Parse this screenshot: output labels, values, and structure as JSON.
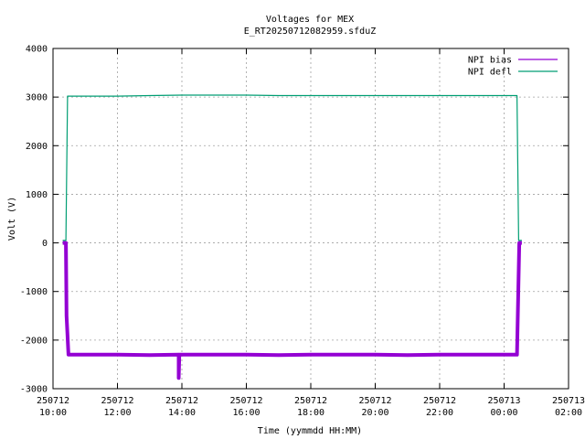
{
  "chart_data": {
    "type": "line",
    "title": "Voltages for MEX",
    "subtitle": "E_RT20250712082959.sfduZ",
    "xlabel": "Time (yymmdd HH:MM)",
    "ylabel": "Volt (V)",
    "xlim": [
      10,
      26
    ],
    "ylim": [
      -3000,
      4000
    ],
    "grid": true,
    "legend_position": "top-right",
    "x_ticks": [
      {
        "x": 10,
        "date": "250712",
        "time": "10:00"
      },
      {
        "x": 12,
        "date": "250712",
        "time": "12:00"
      },
      {
        "x": 14,
        "date": "250712",
        "time": "14:00"
      },
      {
        "x": 16,
        "date": "250712",
        "time": "16:00"
      },
      {
        "x": 18,
        "date": "250712",
        "time": "18:00"
      },
      {
        "x": 20,
        "date": "250712",
        "time": "20:00"
      },
      {
        "x": 22,
        "date": "250712",
        "time": "22:00"
      },
      {
        "x": 24,
        "date": "250713",
        "time": "00:00"
      },
      {
        "x": 26,
        "date": "250713",
        "time": "02:00"
      }
    ],
    "y_ticks": [
      {
        "y": 4000,
        "label": "4000"
      },
      {
        "y": 3000,
        "label": "3000"
      },
      {
        "y": 2000,
        "label": "2000"
      },
      {
        "y": 1000,
        "label": "1000"
      },
      {
        "y": 0,
        "label": "0"
      },
      {
        "y": -1000,
        "label": "-1000"
      },
      {
        "y": -2000,
        "label": "-2000"
      },
      {
        "y": -3000,
        "label": "-3000"
      }
    ],
    "series": [
      {
        "name": "NPI bias",
        "color": "#9400d3",
        "points": [
          [
            10.3,
            0
          ],
          [
            10.4,
            0
          ],
          [
            10.42,
            -1500
          ],
          [
            10.48,
            -2300
          ],
          [
            11,
            -2300
          ],
          [
            12,
            -2300
          ],
          [
            13,
            -2310
          ],
          [
            13.9,
            -2300
          ],
          [
            13.9,
            -2780
          ],
          [
            13.92,
            -2300
          ],
          [
            15,
            -2300
          ],
          [
            16,
            -2300
          ],
          [
            17,
            -2310
          ],
          [
            18,
            -2300
          ],
          [
            19,
            -2300
          ],
          [
            20,
            -2300
          ],
          [
            21,
            -2310
          ],
          [
            22,
            -2300
          ],
          [
            23,
            -2300
          ],
          [
            24,
            -2300
          ],
          [
            24.4,
            -2300
          ],
          [
            24.47,
            0
          ],
          [
            24.55,
            0
          ]
        ]
      },
      {
        "name": "NPI defl",
        "color": "#009e73",
        "points": [
          [
            10.3,
            50
          ],
          [
            10.4,
            50
          ],
          [
            10.45,
            3020
          ],
          [
            11,
            3020
          ],
          [
            12,
            3020
          ],
          [
            13,
            3030
          ],
          [
            14,
            3040
          ],
          [
            15,
            3040
          ],
          [
            16,
            3040
          ],
          [
            17,
            3030
          ],
          [
            18,
            3030
          ],
          [
            19,
            3030
          ],
          [
            20,
            3030
          ],
          [
            21,
            3030
          ],
          [
            22,
            3030
          ],
          [
            23,
            3030
          ],
          [
            24,
            3030
          ],
          [
            24.4,
            3030
          ],
          [
            24.45,
            50
          ],
          [
            24.55,
            50
          ]
        ]
      }
    ]
  }
}
